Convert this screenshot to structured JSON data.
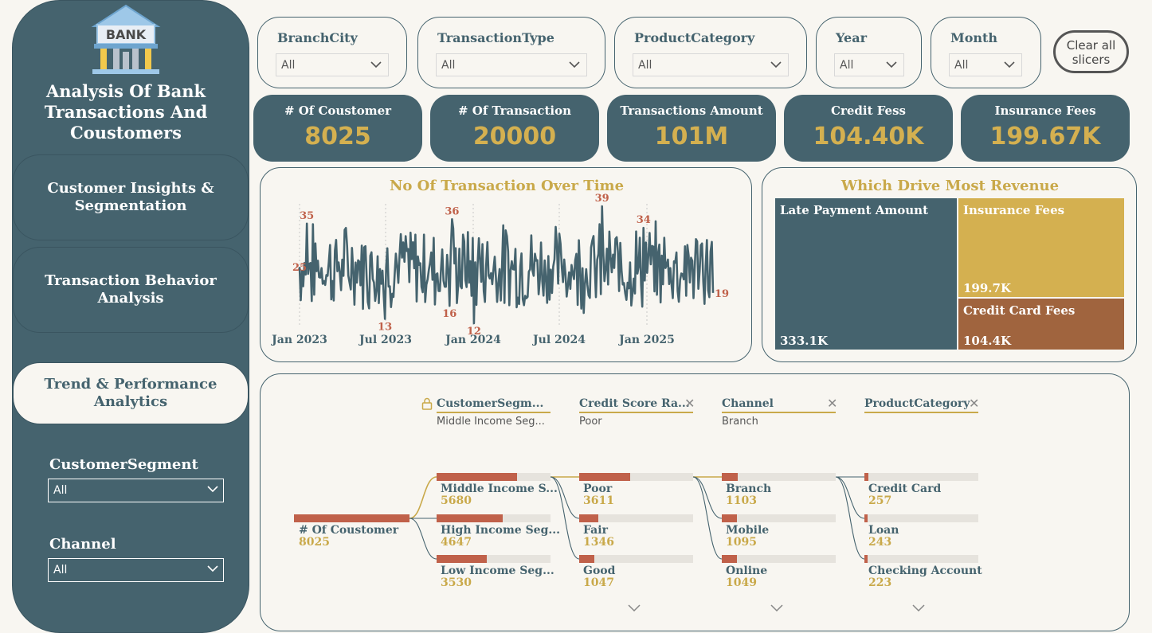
{
  "sidebar": {
    "title": "Analysis Of Bank Transactions And Coustomers",
    "logo_text": "BANK",
    "nav": [
      "Customer Insights & Segmentation",
      "Transaction Behavior Analysis",
      "Trend & Performance Analytics"
    ],
    "filters": [
      {
        "label": "CustomerSegment",
        "value": "All"
      },
      {
        "label": "Channel",
        "value": "All"
      }
    ]
  },
  "slicers": [
    {
      "label": "BranchCity",
      "value": "All"
    },
    {
      "label": "TransactionType",
      "value": "All"
    },
    {
      "label": "ProductCategory",
      "value": "All"
    },
    {
      "label": "Year",
      "value": "All"
    },
    {
      "label": "Month",
      "value": "All"
    }
  ],
  "clear_all": "Clear all slicers",
  "kpis": [
    {
      "title": "# Of Coustomer",
      "value": "8025"
    },
    {
      "title": "# Of Transaction",
      "value": "20000"
    },
    {
      "title": "Transactions Amount",
      "value": "101M"
    },
    {
      "title": "Credit Fess",
      "value": "104.40K"
    },
    {
      "title": "Insurance Fees",
      "value": "199.67K"
    }
  ],
  "line_chart": {
    "title": "No Of Transaction Over Time",
    "x_ticks": [
      "Jan 2023",
      "Jul 2023",
      "Jan 2024",
      "Jul 2024",
      "Jan 2025"
    ],
    "labels": [
      "35",
      "25",
      "13",
      "36",
      "16",
      "12",
      "39",
      "34",
      "19"
    ],
    "color": "#45636e",
    "label_color": "#c0614a"
  },
  "chart_data": {
    "type": "line",
    "title": "No Of Transaction Over Time",
    "x_ticks": [
      "Jan 2023",
      "Jul 2023",
      "Jan 2024",
      "Jul 2024",
      "Jan 2025"
    ],
    "annotated_points": [
      {
        "label": "35",
        "kind": "max"
      },
      {
        "label": "25",
        "kind": "start"
      },
      {
        "label": "13",
        "kind": "min"
      },
      {
        "label": "36",
        "kind": "max"
      },
      {
        "label": "16",
        "kind": "min"
      },
      {
        "label": "12",
        "kind": "min"
      },
      {
        "label": "39",
        "kind": "max"
      },
      {
        "label": "34",
        "kind": "max"
      },
      {
        "label": "19",
        "kind": "end"
      }
    ],
    "y_range": [
      12,
      39
    ]
  },
  "treemap": {
    "title": "Which Drive Most Revenue",
    "items": [
      {
        "name": "Late Payment Amount",
        "value": "333.1K",
        "color": "#45636e"
      },
      {
        "name": "Insurance Fees",
        "value": "199.7K",
        "color": "#d4b050"
      },
      {
        "name": "Credit Card Fees",
        "value": "104.4K",
        "color": "#a0643e"
      }
    ]
  },
  "decomp": {
    "headers": [
      {
        "title": "CustomerSegm...",
        "sub": "Middle Income Seg..."
      },
      {
        "title": "Credit Score Ra...",
        "sub": "Poor"
      },
      {
        "title": "Channel",
        "sub": "Branch"
      },
      {
        "title": "ProductCategory",
        "sub": ""
      }
    ],
    "root": {
      "name": "# Of Coustomer",
      "value": "8025"
    },
    "levels": [
      [
        {
          "name": "Middle Income S...",
          "value": "5680",
          "frac": 0.708
        },
        {
          "name": "High Income Seg...",
          "value": "4647",
          "frac": 0.579
        },
        {
          "name": "Low Income Seg...",
          "value": "3530",
          "frac": 0.44
        }
      ],
      [
        {
          "name": "Poor",
          "value": "3611",
          "frac": 0.45
        },
        {
          "name": "Fair",
          "value": "1346",
          "frac": 0.168
        },
        {
          "name": "Good",
          "value": "1047",
          "frac": 0.13
        }
      ],
      [
        {
          "name": "Branch",
          "value": "1103",
          "frac": 0.137
        },
        {
          "name": "Mobile",
          "value": "1095",
          "frac": 0.136
        },
        {
          "name": "Online",
          "value": "1049",
          "frac": 0.131
        }
      ],
      [
        {
          "name": "Credit Card",
          "value": "257",
          "frac": 0.032
        },
        {
          "name": "Loan",
          "value": "243",
          "frac": 0.03
        },
        {
          "name": "Checking Account",
          "value": "223",
          "frac": 0.028
        }
      ]
    ]
  }
}
